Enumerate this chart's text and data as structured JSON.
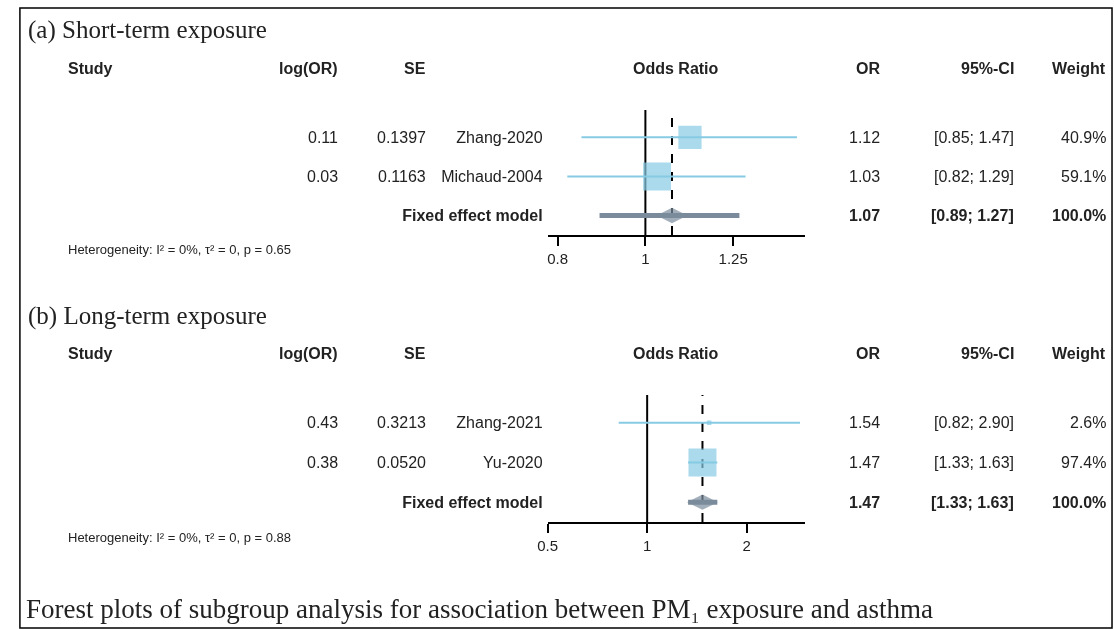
{
  "chart_data": [
    {
      "type": "scatter",
      "orientation": "horizontal",
      "title": "(a) Short-term exposure",
      "xlabel": "Odds Ratio",
      "categories": [
        "Zhang-2020",
        "Michaud-2004",
        "Fixed effect model"
      ],
      "series": [
        {
          "type": "bubble",
          "color": "#86cbe3",
          "marker": "square",
          "values": [
            1.12,
            1.03,
            null
          ],
          "errors": [
            [
              0.85,
              1.47
            ],
            [
              0.82,
              1.29
            ],
            null
          ],
          "sizes": [
            0.69,
            1,
            null
          ]
        },
        {
          "color": "#7b8b9b",
          "marker": "diamond",
          "values": [
            null,
            null,
            1.07
          ],
          "errors": [
            null,
            null,
            [
              0.89,
              1.27
            ]
          ]
        }
      ],
      "log": "x",
      "xlim": [
        0.78,
        1.5
      ],
      "xticks": [
        0.8,
        1,
        1.25
      ],
      "ref_lines": [
        {
          "axis": "x",
          "value": 1,
          "color": "#000000",
          "line_style": "solid"
        },
        {
          "axis": "x",
          "value": 1.07,
          "color": "#000000",
          "line_style": "dashed"
        }
      ],
      "annotations": [
        "Study",
        "log(OR)",
        "SE",
        "OR",
        "95%-CI",
        "Weight",
        "0.11",
        "0.1397",
        "1.12",
        "[0.85; 1.47]",
        "40.9%",
        "0.03",
        "0.1163",
        "1.03",
        "[0.82; 1.29]",
        "59.1%",
        "1.07",
        "[0.89; 1.27]",
        "100.0%",
        "Heterogeneity: I² = 0%, τ² = 0, p = 0.65"
      ]
    },
    {
      "type": "scatter",
      "orientation": "horizontal",
      "title": "(b) Long-term exposure",
      "xlabel": "Odds Ratio",
      "categories": [
        "Zhang-2021",
        "Yu-2020",
        "Fixed effect model"
      ],
      "series": [
        {
          "type": "bubble",
          "color": "#86cbe3",
          "marker": "square",
          "values": [
            1.54,
            1.47,
            null
          ],
          "errors": [
            [
              0.82,
              2.9
            ],
            [
              1.33,
              1.63
            ],
            null
          ],
          "sizes": [
            0.027,
            1,
            null
          ]
        },
        {
          "color": "#7b8b9b",
          "marker": "diamond",
          "values": [
            null,
            null,
            1.47
          ],
          "errors": [
            null,
            null,
            [
              1.33,
              1.63
            ]
          ]
        }
      ],
      "log": "x",
      "xlim": [
        0.5,
        3
      ],
      "xticks": [
        0.5,
        1,
        2
      ],
      "ref_lines": [
        {
          "axis": "x",
          "value": 1,
          "color": "#000000",
          "line_style": "solid"
        },
        {
          "axis": "x",
          "value": 1.47,
          "color": "#000000",
          "line_style": "dashed"
        }
      ],
      "annotations": [
        "Study",
        "log(OR)",
        "SE",
        "OR",
        "95%-CI",
        "Weight",
        "0.43",
        "0.3213",
        "1.54",
        "[0.82; 2.90]",
        "2.6%",
        "0.38",
        "0.0520",
        "1.47",
        "[1.33; 1.63]",
        "97.4%",
        "1.47",
        "[1.33; 1.63]",
        "100.0%",
        "Heterogeneity: I² = 0%, τ² = 0, p = 0.88",
        "Forest plots of subgroup analysis for association between PM₁ exposure and asthma"
      ]
    }
  ]
}
